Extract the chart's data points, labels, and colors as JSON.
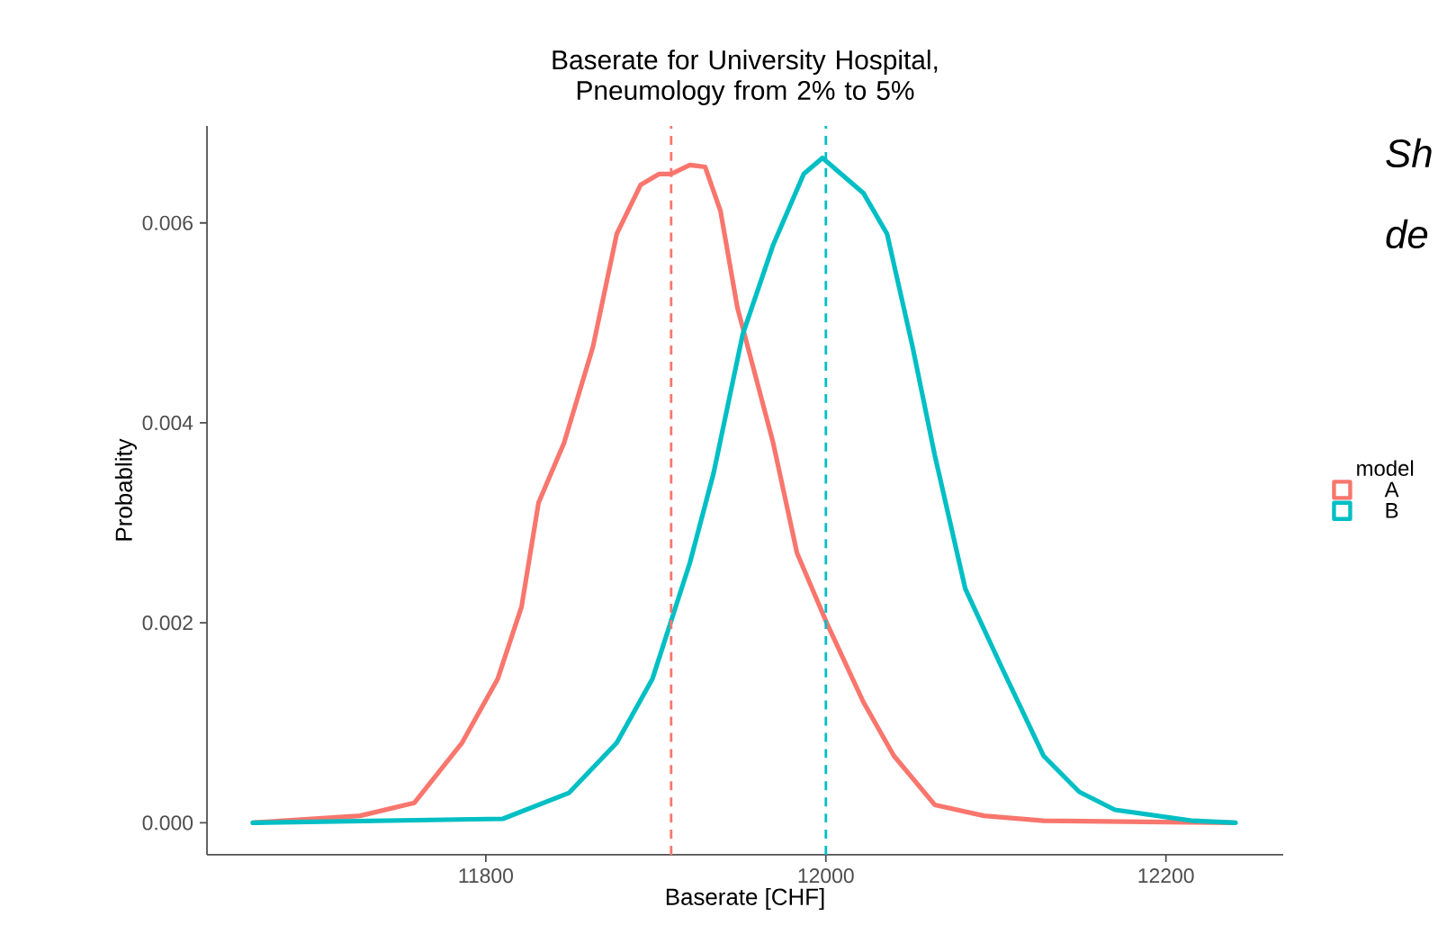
{
  "chart_data": {
    "type": "line",
    "title": "Baserate for University Hospital, Pneumology from 2% to 5%",
    "xlabel": "Baserate [CHF]",
    "ylabel": "Probablity",
    "legend_title": "model",
    "legend": "right",
    "line_style": "solid",
    "xlim": [
      11636,
      12269
    ],
    "ylim": [
      -0.00032,
      0.00697
    ],
    "xticks": [
      11800,
      12000,
      12200
    ],
    "yticks": [
      {
        "value": 0,
        "label": "0.000"
      },
      {
        "value": 0.002,
        "label": "0.002"
      },
      {
        "value": 0.004,
        "label": "0.004"
      },
      {
        "value": 0.006,
        "label": "0.006"
      }
    ],
    "series": [
      {
        "name": "A",
        "color": "#f8766d",
        "x": [
          11663,
          11726,
          11758,
          11786,
          11807,
          11821,
          11831,
          11846,
          11863,
          11877,
          11891,
          11902,
          11909,
          11920,
          11929,
          11938,
          11948,
          11969,
          11983,
          12001,
          12022,
          12040,
          12064,
          12093,
          12128,
          12240
        ],
        "values": [
          0,
          7e-05,
          0.0002,
          0.0008,
          0.00144,
          0.00216,
          0.0032,
          0.0038,
          0.00476,
          0.00589,
          0.00638,
          0.00649,
          0.00649,
          0.00658,
          0.00656,
          0.00612,
          0.00515,
          0.0038,
          0.0027,
          0.00198,
          0.00121,
          0.00067,
          0.00018,
          7e-05,
          2e-05,
          0
        ]
      },
      {
        "name": "B",
        "color": "#00bfc4",
        "x": [
          11663,
          11810,
          11849,
          11877,
          11898,
          11920,
          11934,
          11951,
          11969,
          11987,
          11998,
          12022,
          12036,
          12051,
          12064,
          12082,
          12103,
          12128,
          12149,
          12170,
          12216,
          12241
        ],
        "values": [
          0,
          4e-05,
          0.0003,
          0.0008,
          0.00144,
          0.0026,
          0.0035,
          0.00488,
          0.00578,
          0.00649,
          0.00665,
          0.0063,
          0.00589,
          0.00476,
          0.00368,
          0.00234,
          0.00157,
          0.00067,
          0.00031,
          0.00013,
          2e-05,
          0
        ]
      }
    ],
    "ref_lines": [
      {
        "axis": "x",
        "value": 11909,
        "color": "#f8766d",
        "line_style": "dashed"
      },
      {
        "axis": "x",
        "value": 12000,
        "color": "#00bfc4",
        "line_style": "dashed"
      }
    ],
    "annotations": [
      "Sh",
      "de"
    ]
  }
}
